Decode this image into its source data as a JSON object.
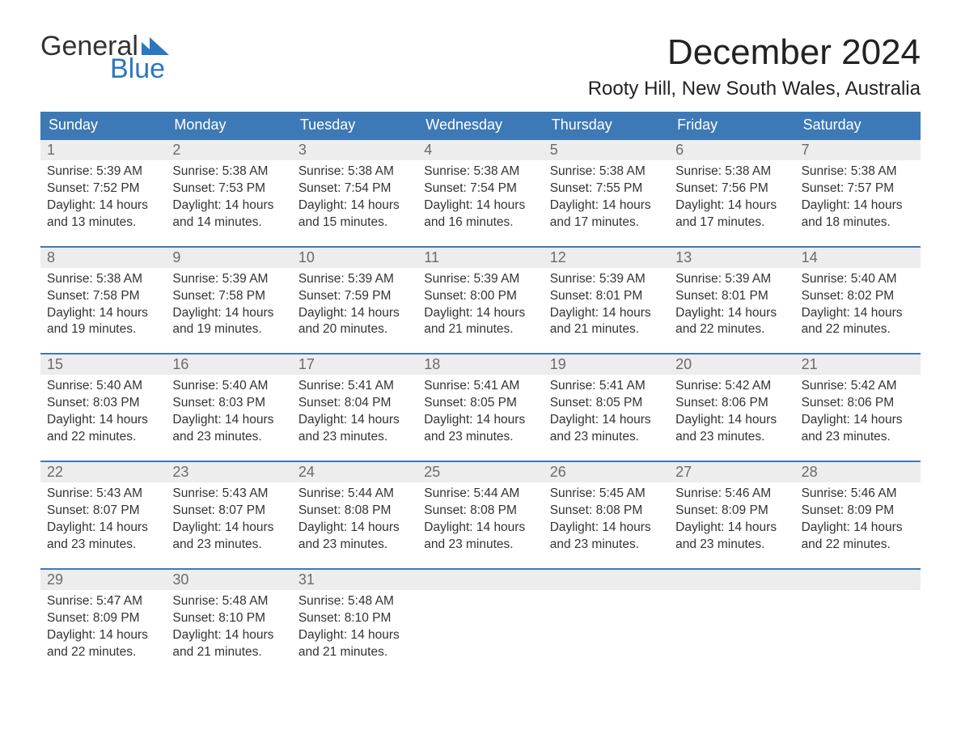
{
  "brand": {
    "word1": "General",
    "word2": "Blue",
    "accent_color": "#2b77c0"
  },
  "title": "December 2024",
  "location": "Rooty Hill, New South Wales, Australia",
  "colors": {
    "header_bg": "#3d79b6",
    "header_text": "#ffffff",
    "daynum_bg": "#ededed",
    "daynum_text": "#6b6b6b",
    "body_text": "#333333",
    "rule": "#3d79b6",
    "page_bg": "#ffffff"
  },
  "weekdays": [
    "Sunday",
    "Monday",
    "Tuesday",
    "Wednesday",
    "Thursday",
    "Friday",
    "Saturday"
  ],
  "weeks": [
    [
      {
        "n": "1",
        "sunrise": "5:39 AM",
        "sunset": "7:52 PM",
        "day_h": 14,
        "day_m": 13
      },
      {
        "n": "2",
        "sunrise": "5:38 AM",
        "sunset": "7:53 PM",
        "day_h": 14,
        "day_m": 14
      },
      {
        "n": "3",
        "sunrise": "5:38 AM",
        "sunset": "7:54 PM",
        "day_h": 14,
        "day_m": 15
      },
      {
        "n": "4",
        "sunrise": "5:38 AM",
        "sunset": "7:54 PM",
        "day_h": 14,
        "day_m": 16
      },
      {
        "n": "5",
        "sunrise": "5:38 AM",
        "sunset": "7:55 PM",
        "day_h": 14,
        "day_m": 17
      },
      {
        "n": "6",
        "sunrise": "5:38 AM",
        "sunset": "7:56 PM",
        "day_h": 14,
        "day_m": 17
      },
      {
        "n": "7",
        "sunrise": "5:38 AM",
        "sunset": "7:57 PM",
        "day_h": 14,
        "day_m": 18
      }
    ],
    [
      {
        "n": "8",
        "sunrise": "5:38 AM",
        "sunset": "7:58 PM",
        "day_h": 14,
        "day_m": 19
      },
      {
        "n": "9",
        "sunrise": "5:39 AM",
        "sunset": "7:58 PM",
        "day_h": 14,
        "day_m": 19
      },
      {
        "n": "10",
        "sunrise": "5:39 AM",
        "sunset": "7:59 PM",
        "day_h": 14,
        "day_m": 20
      },
      {
        "n": "11",
        "sunrise": "5:39 AM",
        "sunset": "8:00 PM",
        "day_h": 14,
        "day_m": 21
      },
      {
        "n": "12",
        "sunrise": "5:39 AM",
        "sunset": "8:01 PM",
        "day_h": 14,
        "day_m": 21
      },
      {
        "n": "13",
        "sunrise": "5:39 AM",
        "sunset": "8:01 PM",
        "day_h": 14,
        "day_m": 22
      },
      {
        "n": "14",
        "sunrise": "5:40 AM",
        "sunset": "8:02 PM",
        "day_h": 14,
        "day_m": 22
      }
    ],
    [
      {
        "n": "15",
        "sunrise": "5:40 AM",
        "sunset": "8:03 PM",
        "day_h": 14,
        "day_m": 22
      },
      {
        "n": "16",
        "sunrise": "5:40 AM",
        "sunset": "8:03 PM",
        "day_h": 14,
        "day_m": 23
      },
      {
        "n": "17",
        "sunrise": "5:41 AM",
        "sunset": "8:04 PM",
        "day_h": 14,
        "day_m": 23
      },
      {
        "n": "18",
        "sunrise": "5:41 AM",
        "sunset": "8:05 PM",
        "day_h": 14,
        "day_m": 23
      },
      {
        "n": "19",
        "sunrise": "5:41 AM",
        "sunset": "8:05 PM",
        "day_h": 14,
        "day_m": 23
      },
      {
        "n": "20",
        "sunrise": "5:42 AM",
        "sunset": "8:06 PM",
        "day_h": 14,
        "day_m": 23
      },
      {
        "n": "21",
        "sunrise": "5:42 AM",
        "sunset": "8:06 PM",
        "day_h": 14,
        "day_m": 23
      }
    ],
    [
      {
        "n": "22",
        "sunrise": "5:43 AM",
        "sunset": "8:07 PM",
        "day_h": 14,
        "day_m": 23
      },
      {
        "n": "23",
        "sunrise": "5:43 AM",
        "sunset": "8:07 PM",
        "day_h": 14,
        "day_m": 23
      },
      {
        "n": "24",
        "sunrise": "5:44 AM",
        "sunset": "8:08 PM",
        "day_h": 14,
        "day_m": 23
      },
      {
        "n": "25",
        "sunrise": "5:44 AM",
        "sunset": "8:08 PM",
        "day_h": 14,
        "day_m": 23
      },
      {
        "n": "26",
        "sunrise": "5:45 AM",
        "sunset": "8:08 PM",
        "day_h": 14,
        "day_m": 23
      },
      {
        "n": "27",
        "sunrise": "5:46 AM",
        "sunset": "8:09 PM",
        "day_h": 14,
        "day_m": 23
      },
      {
        "n": "28",
        "sunrise": "5:46 AM",
        "sunset": "8:09 PM",
        "day_h": 14,
        "day_m": 22
      }
    ],
    [
      {
        "n": "29",
        "sunrise": "5:47 AM",
        "sunset": "8:09 PM",
        "day_h": 14,
        "day_m": 22
      },
      {
        "n": "30",
        "sunrise": "5:48 AM",
        "sunset": "8:10 PM",
        "day_h": 14,
        "day_m": 21
      },
      {
        "n": "31",
        "sunrise": "5:48 AM",
        "sunset": "8:10 PM",
        "day_h": 14,
        "day_m": 21
      },
      null,
      null,
      null,
      null
    ]
  ],
  "labels": {
    "sunrise": "Sunrise:",
    "sunset": "Sunset:",
    "daylight_prefix": "Daylight:",
    "hours_word": "hours",
    "and_word": "and",
    "minutes_word": "minutes."
  }
}
